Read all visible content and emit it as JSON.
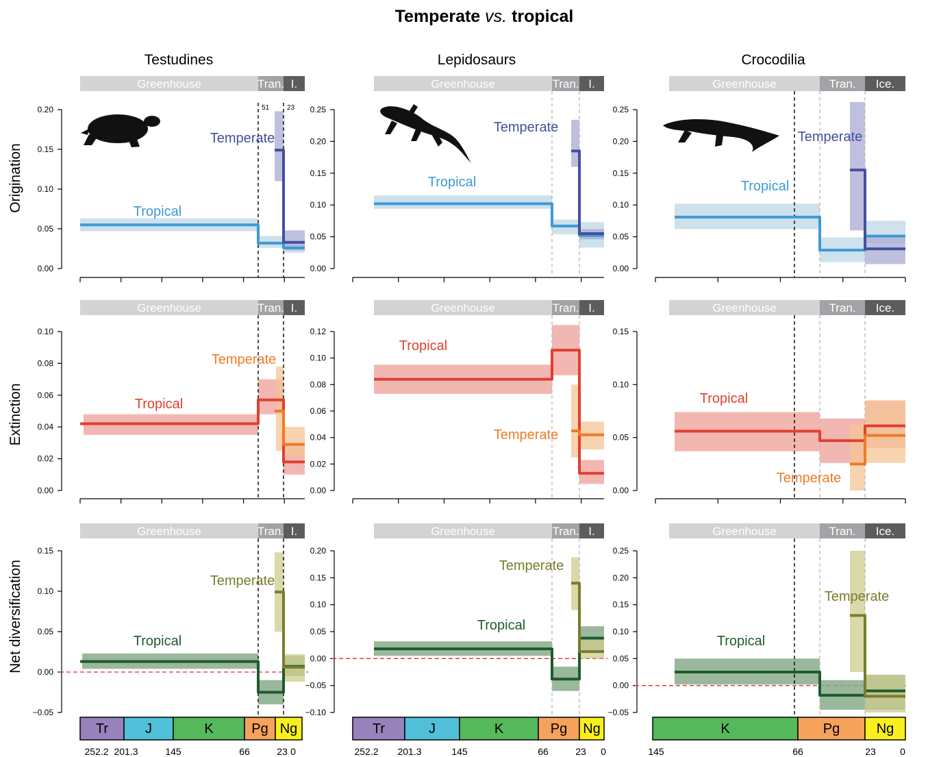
{
  "figure": {
    "title_main": "Temperate",
    "title_italic": "vs.",
    "title_end": "tropical"
  },
  "columns": [
    "Testudines",
    "Lepidosaurs",
    "Crocodilia"
  ],
  "rows": [
    "Origination",
    "Extinction",
    "Net diversification"
  ],
  "climate_labels": {
    "col0": [
      "Greenhouse",
      "Tran.",
      "I."
    ],
    "col1": [
      "Greenhouse",
      "Tran.",
      "I."
    ],
    "col2": [
      "Greenhouse",
      "Tran.",
      "Ice."
    ]
  },
  "boundary_labels": [
    "51",
    "23"
  ],
  "timescales": {
    "col0": {
      "periods": [
        "Tr",
        "J",
        "K",
        "Pg",
        "Ng"
      ],
      "ticks": [
        "252.2",
        "201.3",
        "145",
        "66",
        "23",
        "0"
      ]
    },
    "col1": {
      "periods": [
        "Tr",
        "J",
        "K",
        "Pg",
        "Ng"
      ],
      "ticks": [
        "252.2",
        "201.3",
        "145",
        "66",
        "23",
        "0"
      ]
    },
    "col2": {
      "periods": [
        "K",
        "Pg",
        "Ng"
      ],
      "ticks": [
        "145",
        "66",
        "23",
        "0"
      ]
    }
  },
  "colors": {
    "greenhouse_bar": "#d2d3d5",
    "transition_bar": "#a2a3a6",
    "ice_bar": "#5c5c5e",
    "trop_orig": "#3d9ad6",
    "trop_orig_band": "#c6dcea",
    "temp_orig": "#43509c",
    "temp_orig_band": "#a9abd4",
    "trop_ext": "#e0402f",
    "trop_ext_band": "#f1aaa4",
    "temp_ext": "#ee7b26",
    "temp_ext_band": "#f4c495",
    "trop_div": "#1f5a2e",
    "trop_div_band": "#88ac8a",
    "temp_div": "#7a7c2e",
    "temp_div_band": "#cccc8e",
    "Tr": "#9882bb",
    "J": "#4fc0d8",
    "K": "#55b85b",
    "Pg": "#f5a25a",
    "Ng": "#f8ef1d"
  },
  "chart_data": [
    {
      "type": "line",
      "panel": "Testudines origination",
      "xlim": [
        252.2,
        0
      ],
      "ylim": [
        0,
        0.2
      ],
      "ylabel": "Origination",
      "yticks": [
        "0.00",
        "0.05",
        "0.10",
        "0.15",
        "0.20"
      ],
      "series": [
        {
          "name": "Tropical",
          "x": [
            252.2,
            66,
            66,
            23,
            23,
            0
          ],
          "y": [
            0.055,
            0.055,
            0.032,
            0.032,
            0.026,
            0.026
          ]
        },
        {
          "name": "Temperate",
          "x": [
            51,
            23,
            23,
            0
          ],
          "y": [
            0.149,
            0.149,
            0.033,
            0.033
          ]
        }
      ]
    },
    {
      "type": "line",
      "panel": "Lepidosaurs origination",
      "xlim": [
        252.2,
        0
      ],
      "ylim": [
        0,
        0.25
      ],
      "yticks": [
        "0.00",
        "0.05",
        "0.10",
        "0.15",
        "0.20",
        "0.25"
      ],
      "series": [
        {
          "name": "Tropical",
          "x": [
            252.2,
            66,
            66,
            23,
            23,
            0
          ],
          "y": [
            0.102,
            0.102,
            0.067,
            0.067,
            0.052,
            0.052
          ]
        },
        {
          "name": "Temperate",
          "x": [
            51,
            23,
            23,
            0
          ],
          "y": [
            0.185,
            0.185,
            0.055,
            0.055
          ]
        }
      ]
    },
    {
      "type": "line",
      "panel": "Crocodilia origination",
      "xlim": [
        145,
        0
      ],
      "ylim": [
        0,
        0.25
      ],
      "yticks": [
        "0.00",
        "0.05",
        "0.10",
        "0.15",
        "0.20",
        "0.25"
      ],
      "series": [
        {
          "name": "Tropical",
          "x": [
            145,
            51,
            51,
            23,
            23,
            0
          ],
          "y": [
            0.081,
            0.081,
            0.029,
            0.029,
            0.051,
            0.051
          ]
        },
        {
          "name": "Temperate",
          "x": [
            33,
            23,
            23,
            0
          ],
          "y": [
            0.155,
            0.155,
            0.031,
            0.031
          ]
        }
      ]
    },
    {
      "type": "line",
      "panel": "Testudines extinction",
      "xlim": [
        252.2,
        0
      ],
      "ylim": [
        0,
        0.1
      ],
      "ylabel": "Extinction",
      "yticks": [
        "0.00",
        "0.02",
        "0.04",
        "0.06",
        "0.08",
        "0.10"
      ],
      "series": [
        {
          "name": "Tropical",
          "x": [
            252.2,
            66,
            66,
            23,
            23,
            0
          ],
          "y": [
            0.042,
            0.042,
            0.057,
            0.057,
            0.018,
            0.018
          ]
        },
        {
          "name": "Temperate",
          "x": [
            34,
            23,
            23,
            0
          ],
          "y": [
            0.05,
            0.05,
            0.029,
            0.029
          ]
        }
      ]
    },
    {
      "type": "line",
      "panel": "Lepidosaurs extinction",
      "xlim": [
        252.2,
        0
      ],
      "ylim": [
        0,
        0.12
      ],
      "yticks": [
        "0.00",
        "0.02",
        "0.04",
        "0.06",
        "0.08",
        "0.10",
        "0.12"
      ],
      "series": [
        {
          "name": "Tropical",
          "x": [
            252.2,
            66,
            66,
            23,
            23,
            0
          ],
          "y": [
            0.084,
            0.084,
            0.106,
            0.106,
            0.013,
            0.013
          ]
        },
        {
          "name": "Temperate",
          "x": [
            51,
            23,
            23,
            0
          ],
          "y": [
            0.045,
            0.045,
            0.042,
            0.042
          ]
        }
      ]
    },
    {
      "type": "line",
      "panel": "Crocodilia extinction",
      "xlim": [
        145,
        0
      ],
      "ylim": [
        0,
        0.15
      ],
      "yticks": [
        "0.00",
        "0.05",
        "0.10",
        "0.15"
      ],
      "series": [
        {
          "name": "Tropical",
          "x": [
            145,
            51,
            51,
            23,
            23,
            0
          ],
          "y": [
            0.056,
            0.056,
            0.047,
            0.047,
            0.061,
            0.061
          ]
        },
        {
          "name": "Temperate",
          "x": [
            33,
            23,
            23,
            0
          ],
          "y": [
            0.025,
            0.025,
            0.052,
            0.052
          ]
        }
      ]
    },
    {
      "type": "line",
      "panel": "Testudines net diversification",
      "xlim": [
        252.2,
        0
      ],
      "ylim": [
        -0.05,
        0.15
      ],
      "ylabel": "Net diversification",
      "yticks": [
        "−0.05",
        "0.00",
        "0.05",
        "0.10",
        "0.15"
      ],
      "series": [
        {
          "name": "Tropical",
          "x": [
            252.2,
            66,
            66,
            23,
            23,
            0
          ],
          "y": [
            0.013,
            0.013,
            -0.025,
            -0.025,
            0.007,
            0.007
          ]
        },
        {
          "name": "Temperate",
          "x": [
            34,
            23,
            23,
            0
          ],
          "y": [
            0.099,
            0.099,
            0.006,
            0.006
          ]
        }
      ]
    },
    {
      "type": "line",
      "panel": "Lepidosaurs net diversification",
      "xlim": [
        252.2,
        0
      ],
      "ylim": [
        -0.1,
        0.2
      ],
      "yticks": [
        "−0.10",
        "−0.05",
        "0.00",
        "0.05",
        "0.10",
        "0.15",
        "0.20"
      ],
      "series": [
        {
          "name": "Tropical",
          "x": [
            252.2,
            66,
            66,
            23,
            23,
            0
          ],
          "y": [
            0.018,
            0.018,
            -0.038,
            -0.038,
            0.038,
            0.038
          ]
        },
        {
          "name": "Temperate",
          "x": [
            51,
            23,
            23,
            0
          ],
          "y": [
            0.14,
            0.14,
            0.013,
            0.013
          ]
        }
      ]
    },
    {
      "type": "line",
      "panel": "Crocodilia net diversification",
      "xlim": [
        145,
        0
      ],
      "ylim": [
        -0.05,
        0.25
      ],
      "yticks": [
        "−0.05",
        "0.00",
        "0.05",
        "0.10",
        "0.15",
        "0.20",
        "0.25"
      ],
      "series": [
        {
          "name": "Tropical",
          "x": [
            145,
            51,
            51,
            23,
            23,
            0
          ],
          "y": [
            0.025,
            0.025,
            -0.018,
            -0.018,
            -0.01,
            -0.01
          ]
        },
        {
          "name": "Temperate",
          "x": [
            33,
            23,
            23,
            0
          ],
          "y": [
            0.13,
            0.13,
            -0.02,
            -0.02
          ]
        }
      ]
    }
  ]
}
